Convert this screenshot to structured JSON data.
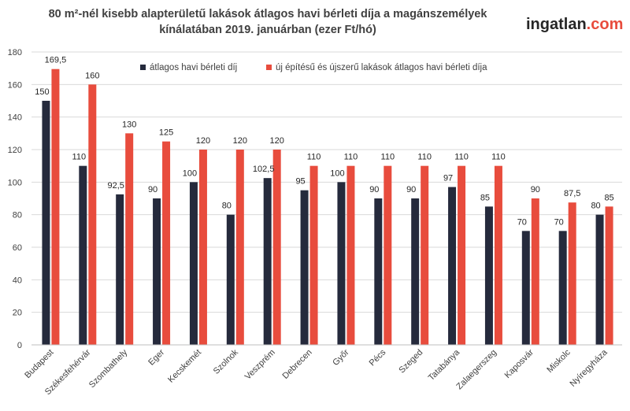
{
  "header": {
    "title_line1": "80 m²-nél kisebb alapterületű lakások átlagos havi bérleti díja a magánszemélyek",
    "title_line2": "kínálatában 2019. januárban (ezer Ft/hó)",
    "brand_name": "ingatlan",
    "brand_suffix": ".com"
  },
  "colors": {
    "series_dark": "#252a3c",
    "series_red": "#e84c3d",
    "grid": "#d9d9d9",
    "axis": "#bfbfbf",
    "brand_accent": "#e84c3d"
  },
  "chart_data": {
    "type": "bar",
    "title": "80 m²-nél kisebb alapterületű lakások átlagos havi bérleti díja a magánszemélyek kínálatában 2019. januárban (ezer Ft/hó)",
    "xlabel": "",
    "ylabel": "",
    "ylim": [
      0,
      180
    ],
    "yticks": [
      0,
      20,
      40,
      60,
      80,
      100,
      120,
      140,
      160,
      180
    ],
    "grid": true,
    "legend": "top-right",
    "categories": [
      "Budapest",
      "Székesfehérvár",
      "Szombathely",
      "Eger",
      "Kecskemét",
      "Szolnok",
      "Veszprém",
      "Debrecen",
      "Győr",
      "Pécs",
      "Szeged",
      "Tatabánya",
      "Zalaegerszeg",
      "Kaposvár",
      "Miskolc",
      "Nyíregyháza"
    ],
    "series": [
      {
        "name": "átlagos havi bérleti díj",
        "values": [
          150,
          110,
          92.5,
          90,
          100,
          80,
          102.5,
          95,
          100,
          90,
          90,
          97,
          85,
          70,
          70,
          80
        ],
        "labels": [
          "150",
          "110",
          "92,5",
          "90",
          "100",
          "80",
          "102,5",
          "95",
          "100",
          "90",
          "90",
          "97",
          "85",
          "70",
          "70",
          "80"
        ]
      },
      {
        "name": "új építésű és újszerű lakások átlagos havi bérleti díja",
        "values": [
          169.5,
          160,
          130,
          125,
          120,
          120,
          120,
          110,
          110,
          110,
          110,
          110,
          110,
          90,
          87.5,
          85
        ],
        "labels": [
          "169,5",
          "160",
          "130",
          "125",
          "120",
          "120",
          "120",
          "110",
          "110",
          "110",
          "110",
          "110",
          "110",
          "90",
          "87,5",
          "85"
        ]
      }
    ]
  }
}
